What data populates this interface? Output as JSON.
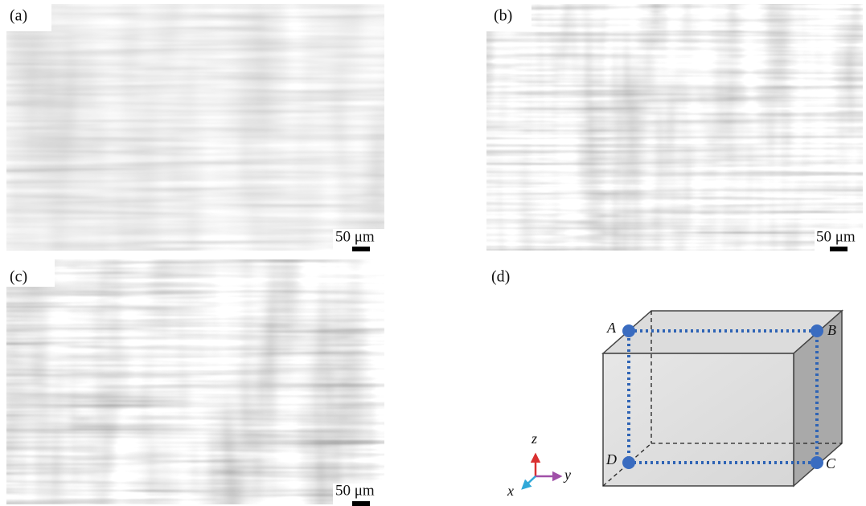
{
  "panels": [
    {
      "label": "(a)",
      "scale_bar": "50 μm"
    },
    {
      "label": "(b)",
      "scale_bar": "50 μm"
    },
    {
      "label": "(c)",
      "scale_bar": "50 μm"
    }
  ],
  "diagram": {
    "label": "(d)",
    "points": [
      "A",
      "B",
      "C",
      "D"
    ],
    "axes": [
      "z",
      "y",
      "x"
    ]
  }
}
